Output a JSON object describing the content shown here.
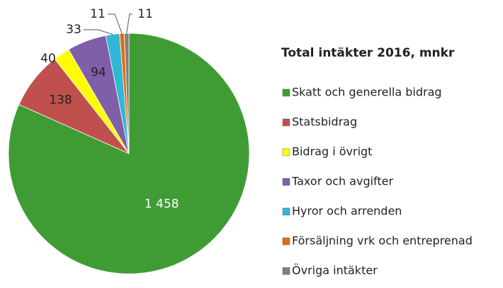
{
  "chart_data": {
    "type": "pie",
    "title": "Total intäkter 2016, mnkr",
    "categories": [
      "Skatt och generella bidrag",
      "Statsbidrag",
      "Bidrag i övrigt",
      "Taxor och avgifter",
      "Hyror och arrenden",
      "Försäljning vrk och entreprenad",
      "Övriga intäkter"
    ],
    "values": [
      1458,
      138,
      40,
      94,
      33,
      11,
      11
    ],
    "value_labels": [
      "1 458",
      "138",
      "40",
      "94",
      "33",
      "11",
      "11"
    ],
    "colors": [
      "#3f9c35",
      "#c0504d",
      "#ffff00",
      "#7f5fa8",
      "#31b6d6",
      "#e46c0a",
      "#808080"
    ],
    "legend": "right"
  }
}
